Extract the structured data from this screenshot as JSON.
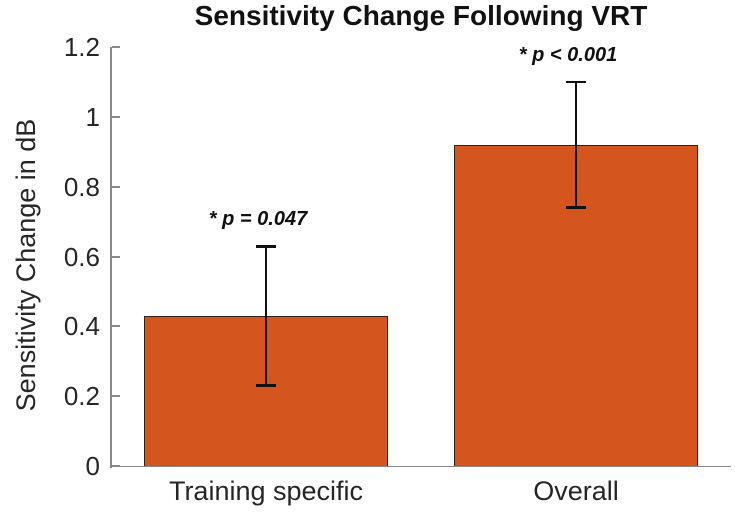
{
  "chart_data": {
    "type": "bar",
    "title": "Sensitivity Change Following VRT",
    "ylabel": "Sensitivity Change in dB",
    "xlabel": "",
    "categories": [
      "Training specific",
      "Overall"
    ],
    "values": [
      0.43,
      0.92
    ],
    "error_low": [
      0.23,
      0.74
    ],
    "error_high": [
      0.63,
      1.1
    ],
    "annotations": [
      "* p = 0.047",
      "* p < 0.001"
    ],
    "ylim": [
      0,
      1.2
    ],
    "yticks": [
      0,
      0.2,
      0.4,
      0.6,
      0.8,
      1,
      1.2
    ],
    "ytick_labels": [
      "0",
      "0.2",
      "0.4",
      "0.6",
      "0.8",
      "1",
      "1.2"
    ],
    "bar_width_fraction": 0.79,
    "grid": false,
    "legend_position": "none",
    "colors": {
      "bar_fill": "#D4551E",
      "bar_edge": "#332015",
      "error_bar": "#111111",
      "axis": "#878787",
      "text": "#262626",
      "title_text": "#111111",
      "background": "#ffffff"
    }
  }
}
